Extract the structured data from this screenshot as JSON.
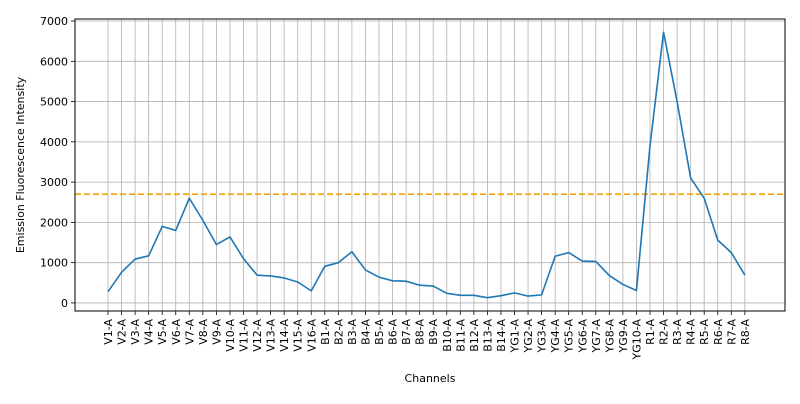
{
  "chart_data": {
    "type": "line",
    "title": "",
    "xlabel": "Channels",
    "ylabel": "Emission Fluorescence Intensity",
    "ylim": [
      -200,
      7050
    ],
    "yticks": [
      0,
      1000,
      2000,
      3000,
      4000,
      5000,
      6000,
      7000
    ],
    "grid": true,
    "line_color": "#1f77b4",
    "threshold": {
      "value": 2700,
      "color": "#f0a30a",
      "style": "dashed"
    },
    "categories": [
      "V1-A",
      "V2-A",
      "V3-A",
      "V4-A",
      "V5-A",
      "V6-A",
      "V7-A",
      "V8-A",
      "V9-A",
      "V10-A",
      "V11-A",
      "V12-A",
      "V13-A",
      "V14-A",
      "V15-A",
      "V16-A",
      "B1-A",
      "B2-A",
      "B3-A",
      "B4-A",
      "B5-A",
      "B6-A",
      "B7-A",
      "B8-A",
      "B9-A",
      "B10-A",
      "B11-A",
      "B12-A",
      "B13-A",
      "B14-A",
      "YG1-A",
      "YG2-A",
      "YG3-A",
      "YG4-A",
      "YG5-A",
      "YG6-A",
      "YG7-A",
      "YG8-A",
      "YG9-A",
      "YG10-A",
      "R1-A",
      "R2-A",
      "R3-A",
      "R4-A",
      "R5-A",
      "R6-A",
      "R7-A",
      "R8-A"
    ],
    "values": [
      280,
      760,
      1090,
      1170,
      1900,
      1800,
      2600,
      2050,
      1450,
      1640,
      1100,
      690,
      670,
      620,
      520,
      300,
      910,
      1000,
      1270,
      820,
      640,
      550,
      540,
      440,
      420,
      240,
      190,
      190,
      130,
      180,
      250,
      170,
      200,
      1160,
      1250,
      1040,
      1030,
      680,
      460,
      310,
      3900,
      6720,
      5000,
      3100,
      2600,
      1560,
      1250,
      690
    ]
  }
}
